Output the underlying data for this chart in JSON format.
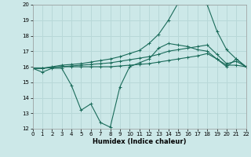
{
  "xlabel": "Humidex (Indice chaleur)",
  "xlim": [
    0,
    22
  ],
  "ylim": [
    12,
    20
  ],
  "yticks": [
    12,
    13,
    14,
    15,
    16,
    17,
    18,
    19,
    20
  ],
  "xticks": [
    0,
    1,
    2,
    3,
    4,
    5,
    6,
    7,
    8,
    9,
    10,
    11,
    12,
    13,
    14,
    15,
    16,
    17,
    18,
    19,
    20,
    21,
    22
  ],
  "bg_color": "#cce8e8",
  "grid_color": "#b8d8d8",
  "line_color": "#1a6b5a",
  "lines": [
    {
      "x": [
        0,
        1,
        2,
        3,
        4,
        5,
        6,
        7,
        8,
        9,
        10,
        11,
        12,
        13,
        14,
        15,
        16,
        17,
        18,
        19,
        20,
        21,
        22
      ],
      "y": [
        15.9,
        15.65,
        15.9,
        15.9,
        14.8,
        13.2,
        13.6,
        12.4,
        12.1,
        14.7,
        16.0,
        16.25,
        16.5,
        17.2,
        17.5,
        17.4,
        17.3,
        17.1,
        17.0,
        16.5,
        16.0,
        16.5,
        16.0
      ]
    },
    {
      "x": [
        0,
        1,
        2,
        3,
        4,
        5,
        6,
        7,
        8,
        9,
        10,
        11,
        12,
        13,
        14,
        15,
        16,
        17,
        18,
        19,
        20,
        21,
        22
      ],
      "y": [
        15.9,
        15.9,
        15.95,
        16.0,
        16.0,
        16.0,
        16.0,
        16.0,
        16.0,
        16.05,
        16.1,
        16.15,
        16.2,
        16.3,
        16.4,
        16.5,
        16.6,
        16.7,
        16.85,
        16.5,
        16.1,
        16.1,
        16.0
      ]
    },
    {
      "x": [
        0,
        1,
        2,
        3,
        4,
        5,
        6,
        7,
        8,
        9,
        10,
        11,
        12,
        13,
        14,
        15,
        16,
        17,
        18,
        19,
        20,
        21,
        22
      ],
      "y": [
        15.9,
        15.9,
        15.95,
        16.0,
        16.05,
        16.1,
        16.15,
        16.2,
        16.25,
        16.35,
        16.45,
        16.55,
        16.65,
        16.8,
        17.0,
        17.1,
        17.2,
        17.3,
        17.4,
        16.8,
        16.2,
        16.35,
        16.0
      ]
    },
    {
      "x": [
        0,
        1,
        2,
        3,
        4,
        5,
        6,
        7,
        8,
        9,
        10,
        11,
        12,
        13,
        14,
        15,
        16,
        17,
        18,
        19,
        20,
        21,
        22
      ],
      "y": [
        15.9,
        15.9,
        16.0,
        16.1,
        16.15,
        16.2,
        16.3,
        16.4,
        16.5,
        16.65,
        16.85,
        17.05,
        17.5,
        18.1,
        19.0,
        20.1,
        20.2,
        20.15,
        20.0,
        18.3,
        17.1,
        16.5,
        16.0
      ]
    }
  ]
}
